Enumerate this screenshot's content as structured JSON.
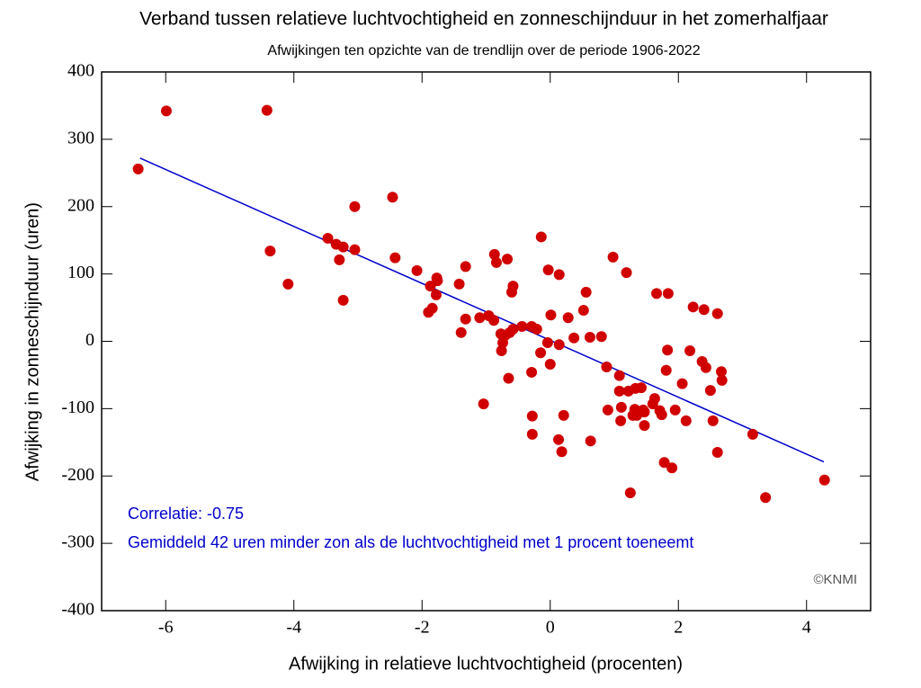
{
  "chart_data": {
    "type": "scatter",
    "title": "Verband tussen relatieve luchtvochtigheid en zonneschijnduur in het zomerhalfjaar",
    "subtitle": "Afwijkingen ten opzichte van de trendlijn over de periode 1906-2022",
    "x_label": "Afwijking in relatieve luchtvochtigheid (procenten)",
    "y_label": "Afwijking in zonneschijnduur (uren)",
    "annotations": [
      "Correlatie: -0.75",
      "Gemiddeld 42 uren minder zon als de luchtvochtigheid met 1 procent toeneemt",
      "©KNMI"
    ],
    "xlim": [
      -7,
      5
    ],
    "xticks": [
      -6,
      -4,
      -2,
      0,
      2,
      4
    ],
    "ylim": [
      -400,
      400
    ],
    "yticks": [
      -400,
      -300,
      -200,
      -100,
      0,
      100,
      200,
      300,
      400
    ],
    "grid": false,
    "series": [
      {
        "color": "#d00000",
        "x": [
          -6.43,
          -5.99,
          -4.42,
          -4.37,
          -4.09,
          -3.47,
          -3.34,
          -3.29,
          -3.23,
          -3.23,
          -3.05,
          -3.05,
          -2.46,
          -2.42,
          -2.08,
          -1.9,
          -1.87,
          -1.84,
          -1.78,
          -1.77,
          -1.76,
          -1.42,
          -1.39,
          -1.32,
          -1.32,
          -1.1,
          -1.04,
          -0.96,
          -0.88,
          -0.87,
          -0.84,
          -0.77,
          -0.76,
          -0.74,
          -0.7,
          -0.67,
          -0.65,
          -0.63,
          -0.6,
          -0.58,
          -0.58,
          -0.44,
          -0.29,
          -0.29,
          -0.28,
          -0.28,
          -0.21,
          -0.15,
          -0.14,
          -0.04,
          -0.03,
          0,
          0.01,
          0.14,
          0.13,
          0.14,
          0.18,
          0.21,
          0.28,
          0.37,
          0.52,
          0.56,
          0.62,
          0.63,
          0.8,
          0.88,
          0.9,
          0.98,
          1.08,
          1.08,
          1.11,
          1.1,
          1.19,
          1.22,
          1.25,
          1.29,
          1.32,
          1.33,
          1.35,
          1.39,
          1.42,
          1.45,
          1.47,
          1.47,
          1.6,
          1.63,
          1.66,
          1.71,
          1.74,
          1.81,
          1.78,
          1.83,
          1.84,
          1.9,
          1.95,
          2.06,
          2.12,
          2.18,
          2.23,
          2.37,
          2.4,
          2.43,
          2.5,
          2.54,
          2.61,
          2.61,
          2.67,
          2.68,
          3.16,
          3.36,
          4.28
        ],
        "values": [
          256,
          342,
          343,
          134,
          85,
          153,
          144,
          121,
          140,
          61,
          200,
          136,
          214,
          124,
          105,
          43,
          82,
          49,
          69,
          94,
          90,
          85,
          13,
          111,
          33,
          35,
          -93,
          38,
          31,
          129,
          117,
          11,
          -14,
          -2,
          9,
          122,
          -55,
          13,
          73,
          82,
          18,
          22,
          22,
          -46,
          -111,
          -138,
          18,
          -17,
          155,
          -2,
          106,
          -34,
          39,
          99,
          -146,
          -5,
          -164,
          -110,
          35,
          5,
          46,
          73,
          6,
          -148,
          7,
          -38,
          -102,
          125,
          -51,
          -74,
          -98,
          -118,
          102,
          -74,
          -225,
          -110,
          -101,
          -70,
          -110,
          -105,
          -69,
          -102,
          -125,
          -105,
          -93,
          -85,
          71,
          -103,
          -109,
          -43,
          -180,
          -13,
          71,
          -188,
          -102,
          -63,
          -118,
          -14,
          51,
          -30,
          47,
          -39,
          -73,
          -118,
          -165,
          41,
          -45,
          -58,
          -138,
          -232,
          -206
        ]
      }
    ],
    "trendline": {
      "color": "#0000cc",
      "x": [
        -6.4,
        4.27
      ],
      "values": [
        272,
        -179
      ]
    }
  }
}
